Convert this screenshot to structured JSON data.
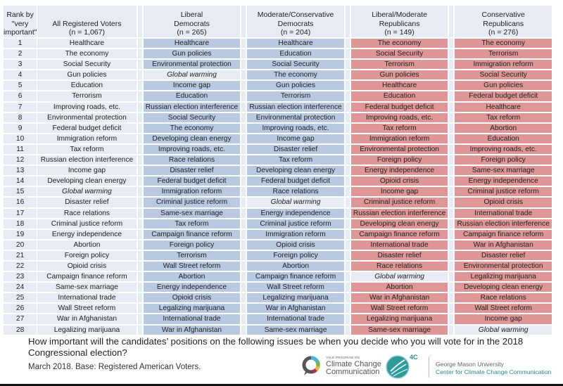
{
  "table": {
    "headers": {
      "rank": [
        "Rank by",
        "\"very",
        "important\""
      ],
      "groups": [
        {
          "lines": [
            "All Registered Voters",
            "(n = 1,067)"
          ],
          "party": "all"
        },
        {
          "lines": [
            "Liberal",
            "Democrats",
            "(n = 265)"
          ],
          "party": "dem"
        },
        {
          "lines": [
            "Moderate/Conservative",
            "Democrats",
            "(n = 204)"
          ],
          "party": "dem"
        },
        {
          "lines": [
            "Liberal/Moderate",
            "Republicans",
            "(n = 149)"
          ],
          "party": "rep"
        },
        {
          "lines": [
            "Conservative",
            "Republicans",
            "(n = 276)"
          ],
          "party": "rep"
        }
      ]
    },
    "highlight_issue": "Global warming",
    "colors": {
      "header_bg": "#e6ebf4",
      "democrat": "#b8c9e1",
      "republican": "#de9696",
      "global_warming_cell": "#e6ebf4"
    },
    "rows": [
      {
        "rank": "1",
        "cells": [
          "Healthcare",
          "Healthcare",
          "Healthcare",
          "The economy",
          "The economy"
        ]
      },
      {
        "rank": "2",
        "cells": [
          "The economy",
          "Gun policies",
          "Education",
          "Social Security",
          "Terrorism"
        ]
      },
      {
        "rank": "3",
        "cells": [
          "Social Security",
          "Environmental protection",
          "Social Security",
          "Terrorism",
          "Immigration reform"
        ]
      },
      {
        "rank": "4",
        "cells": [
          "Gun policies",
          "Global warming",
          "The economy",
          "Gun policies",
          "Social Security"
        ]
      },
      {
        "rank": "5",
        "cells": [
          "Education",
          "Income gap",
          "Gun policies",
          "Healthcare",
          "Gun policies"
        ]
      },
      {
        "rank": "6",
        "cells": [
          "Terrorism",
          "Education",
          "Terrorism",
          "Education",
          "Federal budget deficit"
        ]
      },
      {
        "rank": "7",
        "cells": [
          "Improving roads, etc.",
          "Russian election interference",
          "Russian election interference",
          "Federal budget deficit",
          "Healthcare"
        ]
      },
      {
        "rank": "8",
        "cells": [
          "Environmental protection",
          "Social Security",
          "Environmental protection",
          "Improving roads, etc.",
          "Tax reform"
        ]
      },
      {
        "rank": "9",
        "cells": [
          "Federal budget deficit",
          "The economy",
          "Improving roads, etc.",
          "Tax reform",
          "Abortion"
        ]
      },
      {
        "rank": "10",
        "cells": [
          "Immigration reform",
          "Developing clean energy",
          "Income gap",
          "Immigration reform",
          "Education"
        ]
      },
      {
        "rank": "11",
        "cells": [
          "Tax reform",
          "Improving roads, etc.",
          "Disaster relief",
          "Environmental protection",
          "Improving roads, etc."
        ]
      },
      {
        "rank": "12",
        "cells": [
          "Russian election interference",
          "Race relations",
          "Tax reform",
          "Foreign policy",
          "Foreign policy"
        ]
      },
      {
        "rank": "13",
        "cells": [
          "Income gap",
          "Disaster relief",
          "Developing clean energy",
          "Energy independence",
          "Same-sex marriage"
        ]
      },
      {
        "rank": "14",
        "cells": [
          "Developing clean energy",
          "Federal budget deficit",
          "Federal budget deficit",
          "Opioid crisis",
          "Energy independence"
        ]
      },
      {
        "rank": "15",
        "cells": [
          "Global warming",
          "Immigration reform",
          "Race relations",
          "Income gap",
          "Criminal justice reform"
        ]
      },
      {
        "rank": "16",
        "cells": [
          "Disaster relief",
          "Criminal justice reform",
          "Global warming",
          "Criminal justice reform",
          "Opioid crisis"
        ]
      },
      {
        "rank": "17",
        "cells": [
          "Race relations",
          "Same-sex marriage",
          "Energy independence",
          "Russian election interference",
          "International trade"
        ]
      },
      {
        "rank": "18",
        "cells": [
          "Criminal justice reform",
          "Tax reform",
          "Criminal justice reform",
          "Developing clean energy",
          "Russian election interference"
        ]
      },
      {
        "rank": "19",
        "cells": [
          "Energy independence",
          "Campaign finance reform",
          "Immigration reform",
          "Campaign finance reform",
          "Campaign finance reform"
        ]
      },
      {
        "rank": "20",
        "cells": [
          "Abortion",
          "Foreign policy",
          "Opioid crisis",
          "International trade",
          "War in Afghanistan"
        ]
      },
      {
        "rank": "21",
        "cells": [
          "Foreign policy",
          "Terrorism",
          "Foreign policy",
          "Disaster relief",
          "Disaster relief"
        ]
      },
      {
        "rank": "22",
        "cells": [
          "Opioid crisis",
          "Wall Street reform",
          "Abortion",
          "Race relations",
          "Environmental protection"
        ]
      },
      {
        "rank": "23",
        "cells": [
          "Campaign finance reform",
          "Abortion",
          "Campaign finance reform",
          "Global warming",
          "Legalizing marijuana"
        ]
      },
      {
        "rank": "24",
        "cells": [
          "Same-sex marriage",
          "Energy independence",
          "Wall Street reform",
          "Abortion",
          "Developing clean energy"
        ]
      },
      {
        "rank": "25",
        "cells": [
          "International trade",
          "Opioid crisis",
          "Legalizing marijuana",
          "War in Afghanistan",
          "Race relations"
        ]
      },
      {
        "rank": "26",
        "cells": [
          "Wall Street reform",
          "Legalizing marijuana",
          "War in Afghanistan",
          "Wall Street reform",
          "Wall Street reform"
        ]
      },
      {
        "rank": "27",
        "cells": [
          "War in Afghanistan",
          "International trade",
          "International trade",
          "Legalizing marijuana",
          "Income gap"
        ]
      },
      {
        "rank": "28",
        "cells": [
          "Legalizing marijuana",
          "War in Afghanistan",
          "Same-sex marriage",
          "Same-sex marriage",
          "Global warming"
        ]
      }
    ]
  },
  "footer": {
    "question": "How important will the candidates’ positions on the following issues be when you decide who you will vote for in the 2018 Congressional election?",
    "base": "March 2018. Base: Registered American Voters."
  },
  "logos": {
    "ycc_small": "YALE PROGRAM ON",
    "ycc_line1": "Climate Change",
    "ycc_line2": "Communication",
    "c4_label": "4C",
    "gmu_name": "George Mason University",
    "gmu_center": "Center for Climate Change Communication"
  }
}
